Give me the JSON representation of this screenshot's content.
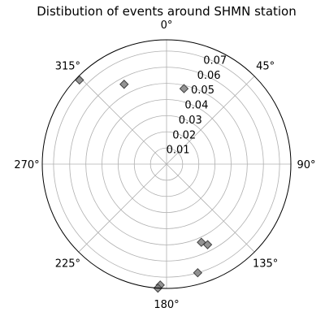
{
  "chart_data": {
    "type": "scatter",
    "projection": "polar",
    "title": "Distibution of events around SHMN station",
    "theta_zero_location": "N",
    "theta_direction": "clockwise",
    "theta_ticks_deg": [
      0,
      45,
      90,
      135,
      180,
      225,
      270,
      315
    ],
    "theta_tick_labels": [
      "0°",
      "45°",
      "90°",
      "135°",
      "180°",
      "225°",
      "270°",
      "315°"
    ],
    "r_ticks": [
      0.01,
      0.02,
      0.03,
      0.04,
      0.05,
      0.06,
      0.07
    ],
    "r_tick_labels": [
      "0.01",
      "0.02",
      "0.03",
      "0.04",
      "0.05",
      "0.06",
      "0.07"
    ],
    "rlim": [
      0,
      0.077
    ],
    "r_label_position_deg": 22.5,
    "grid": true,
    "marker": "diamond",
    "marker_color": "#808080",
    "marker_edge_color": "#404040",
    "points": [
      {
        "theta_deg": 13,
        "r": 0.048
      },
      {
        "theta_deg": 332,
        "r": 0.056
      },
      {
        "theta_deg": 314,
        "r": 0.075
      },
      {
        "theta_deg": 156,
        "r": 0.053
      },
      {
        "theta_deg": 153,
        "r": 0.056
      },
      {
        "theta_deg": 164,
        "r": 0.07
      },
      {
        "theta_deg": 183,
        "r": 0.075
      },
      {
        "theta_deg": 184,
        "r": 0.077
      }
    ]
  }
}
